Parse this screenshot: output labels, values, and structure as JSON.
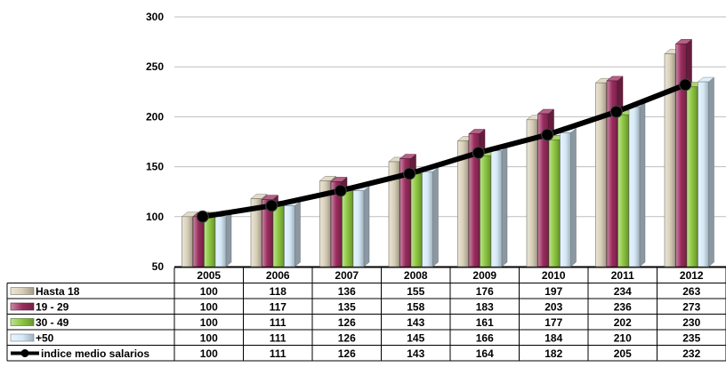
{
  "chart_data": {
    "type": "bar",
    "categories": [
      "2005",
      "2006",
      "2007",
      "2008",
      "2009",
      "2010",
      "2011",
      "2012"
    ],
    "series": [
      {
        "name": "Hasta 18",
        "type": "bar",
        "color": "#D8CFB8",
        "values": [
          100,
          118,
          136,
          155,
          176,
          197,
          234,
          263
        ]
      },
      {
        "name": "19 - 29",
        "type": "bar",
        "color": "#9B2C5E",
        "values": [
          100,
          117,
          135,
          158,
          183,
          203,
          236,
          273
        ]
      },
      {
        "name": "30 - 49",
        "type": "bar",
        "color": "#8CC63F",
        "values": [
          100,
          111,
          126,
          143,
          161,
          177,
          202,
          230
        ]
      },
      {
        "name": "+50",
        "type": "bar",
        "color": "#D6EAF8",
        "values": [
          100,
          111,
          126,
          145,
          166,
          184,
          210,
          235
        ]
      },
      {
        "name": "indice medio salarios",
        "type": "line",
        "color": "#000000",
        "values": [
          100,
          111,
          126,
          143,
          164,
          182,
          205,
          232
        ]
      }
    ],
    "ylim": [
      50,
      300
    ],
    "yticks": [
      "50",
      "100",
      "150",
      "200",
      "250",
      "300"
    ],
    "grid": true,
    "legend": "data-table-left",
    "title": "",
    "xlabel": "",
    "ylabel": ""
  }
}
